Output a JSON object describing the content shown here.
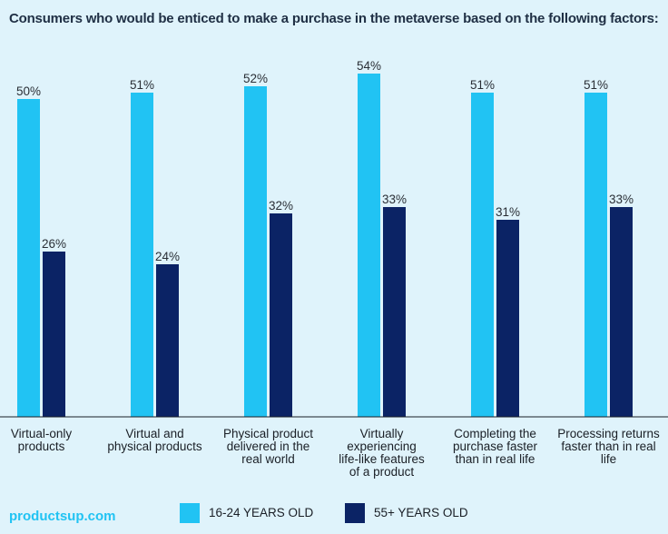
{
  "chart_data": {
    "type": "bar",
    "title": "Consumers who would be enticed to make a purchase in the metaverse based on the following factors:",
    "categories": [
      [
        "Virtual-only",
        "products"
      ],
      [
        "Virtual and",
        "physical products"
      ],
      [
        "Physical product",
        "delivered in the",
        "real world"
      ],
      [
        "Virtually",
        "experiencing",
        "life-like features",
        "of a product"
      ],
      [
        "Completing the",
        "purchase faster",
        "than in real life"
      ],
      [
        "Processing returns",
        "faster than in real",
        "life"
      ]
    ],
    "series": [
      {
        "name": "16-24 YEARS OLD",
        "color": "#21c3f3",
        "values": [
          50,
          51,
          52,
          54,
          51,
          51
        ],
        "labels": [
          "50%",
          "51%",
          "52%",
          "54%",
          "51%",
          "51%"
        ]
      },
      {
        "name": "55+ YEARS OLD",
        "color": "#0b2365",
        "values": [
          26,
          24,
          32,
          33,
          31,
          33
        ],
        "labels": [
          "26%",
          "24%",
          "32%",
          "33%",
          "31%",
          "33%"
        ]
      }
    ],
    "ylim": [
      0,
      60
    ],
    "grid": false,
    "legend": "bottom-center",
    "xlabel": "",
    "ylabel": ""
  },
  "footer": {
    "brand": "productsup.com",
    "brand_color": "#21c3f3"
  },
  "colors": {
    "background": "#dff3fb",
    "axis": "#1a1f26"
  }
}
